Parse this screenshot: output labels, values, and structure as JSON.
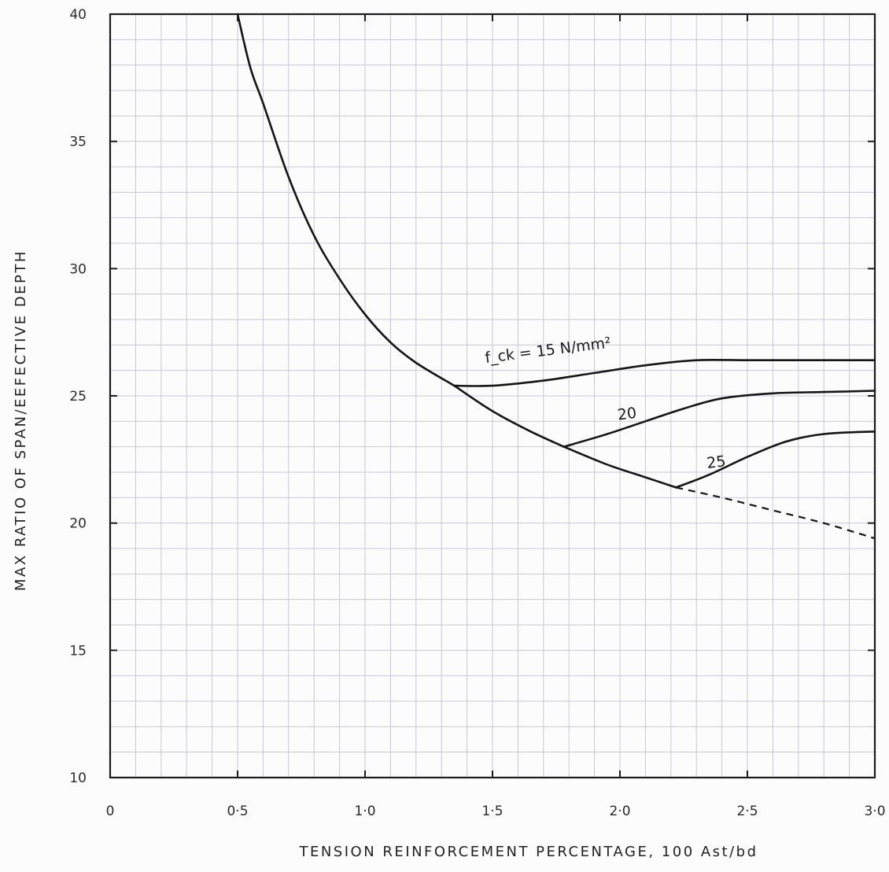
{
  "chart_data": {
    "type": "line",
    "xlabel": "TENSION REINFORCEMENT PERCENTAGE, 100 Ast/bd",
    "ylabel": "MAX RATIO OF SPAN/EEFECTIVE DEPTH",
    "xlim": [
      0,
      3.0
    ],
    "ylim": [
      10,
      40
    ],
    "x_ticks": [
      0,
      0.5,
      1.0,
      1.5,
      2.0,
      2.5,
      3.0
    ],
    "x_tick_labels": [
      "0",
      "0·5",
      "1·0",
      "1·5",
      "2·0",
      "2·5",
      "3·0"
    ],
    "y_ticks": [
      10,
      15,
      20,
      25,
      30,
      35,
      40
    ],
    "y_tick_labels": [
      "10",
      "15",
      "20",
      "25",
      "30",
      "35",
      "40"
    ],
    "grid": true,
    "series": [
      {
        "name": "f_ck = 15 N/mm²",
        "x": [
          0.5,
          0.55,
          0.6,
          0.7,
          0.8,
          0.9,
          1.0,
          1.1,
          1.2,
          1.35
        ],
        "y": [
          40,
          37.9,
          36.5,
          33.6,
          31.3,
          29.6,
          28.2,
          27.1,
          26.3,
          25.4
        ],
        "style": "solid"
      },
      {
        "name": "f_ck = 15 N/mm²",
        "x": [
          1.35,
          1.5,
          1.7,
          1.9,
          2.1,
          2.3,
          2.5,
          2.7,
          3.0
        ],
        "y": [
          25.4,
          25.4,
          25.6,
          25.9,
          26.2,
          26.4,
          26.4,
          26.4,
          26.4
        ],
        "style": "solid"
      },
      {
        "name": "20",
        "x": [
          1.35,
          1.5,
          1.65,
          1.78
        ],
        "y": [
          25.4,
          24.4,
          23.6,
          23.0
        ],
        "style": "solid"
      },
      {
        "name": "20",
        "x": [
          1.78,
          1.95,
          2.1,
          2.25,
          2.4,
          2.6,
          2.8,
          3.0
        ],
        "y": [
          23.0,
          23.5,
          24.0,
          24.5,
          24.9,
          25.1,
          25.15,
          25.2
        ],
        "style": "solid"
      },
      {
        "name": "25",
        "x": [
          1.78,
          1.95,
          2.1,
          2.22
        ],
        "y": [
          23.0,
          22.3,
          21.8,
          21.4
        ],
        "style": "solid"
      },
      {
        "name": "25",
        "x": [
          2.22,
          2.35,
          2.5,
          2.65,
          2.8,
          3.0
        ],
        "y": [
          21.4,
          21.9,
          22.6,
          23.2,
          23.5,
          23.6
        ],
        "style": "solid"
      },
      {
        "name": "",
        "x": [
          2.22,
          2.4,
          2.6,
          2.8,
          3.0
        ],
        "y": [
          21.4,
          21.0,
          20.5,
          20.0,
          19.4
        ],
        "style": "dashed"
      }
    ],
    "annotations": [
      {
        "text": "f_ck = 15 N/mm²",
        "x": 1.72,
        "y": 26.6
      },
      {
        "text": "20",
        "x": 2.03,
        "y": 24.1
      },
      {
        "text": "25",
        "x": 2.38,
        "y": 22.2
      }
    ]
  }
}
